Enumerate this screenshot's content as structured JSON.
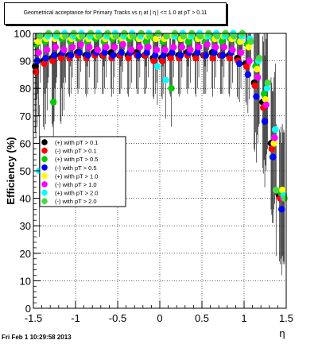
{
  "chart_data": {
    "type": "scatter",
    "title": "Geometrical acceptance for Primary Tracks vs   η at |  η | <= 1.0 at pT > 0.11",
    "xlabel": "η",
    "ylabel": "Efficiency (%)",
    "xlim": [
      -1.5,
      1.5
    ],
    "ylim": [
      0,
      100
    ],
    "xticks": [
      "-1.5",
      "-1",
      "-0.5",
      "0",
      "0.5",
      "1",
      "1.5"
    ],
    "yticks": [
      "0",
      "10",
      "20",
      "30",
      "40",
      "50",
      "60",
      "70",
      "80",
      "90",
      "100"
    ],
    "grid": true,
    "legend_position": "left-middle",
    "series": [
      {
        "name": "(+) with pT > 0.1",
        "color": "#000000",
        "x": [
          -1.45,
          -1.35,
          -1.25,
          -1.15,
          -1.05,
          -0.95,
          -0.85,
          -0.75,
          -0.65,
          -0.55,
          -0.45,
          -0.35,
          -0.25,
          -0.15,
          -0.05,
          0.05,
          0.15,
          0.25,
          0.35,
          0.45,
          0.55,
          0.65,
          0.75,
          0.85,
          0.95,
          1.05,
          1.15,
          1.25,
          1.35,
          1.45
        ],
        "y": [
          88,
          90,
          91,
          92,
          92,
          93,
          92,
          93,
          92,
          93,
          92,
          92,
          93,
          92,
          91,
          91,
          92,
          92,
          93,
          92,
          92,
          93,
          92,
          92,
          91,
          89,
          82,
          75,
          60,
          41
        ]
      },
      {
        "name": "(-) with pT > 0.1",
        "color": "#ff0000",
        "x": [
          -1.45,
          -1.35,
          -1.25,
          -1.15,
          -1.05,
          -0.95,
          -0.85,
          -0.75,
          -0.65,
          -0.55,
          -0.45,
          -0.35,
          -0.25,
          -0.15,
          -0.05,
          0.05,
          0.15,
          0.25,
          0.35,
          0.45,
          0.55,
          0.65,
          0.75,
          0.85,
          0.95,
          1.05,
          1.15,
          1.25,
          1.35,
          1.45
        ],
        "y": [
          86,
          89,
          90,
          91,
          91,
          92,
          91,
          92,
          92,
          91,
          92,
          91,
          92,
          92,
          90,
          90,
          91,
          91,
          92,
          91,
          92,
          91,
          92,
          91,
          90,
          88,
          81,
          73,
          58,
          40
        ]
      },
      {
        "name": "(+) with pT > 0.5",
        "color": "#00cc00",
        "x": [
          -1.45,
          -1.35,
          -1.25,
          -1.15,
          -1.05,
          -0.95,
          -0.85,
          -0.75,
          -0.65,
          -0.55,
          -0.45,
          -0.35,
          -0.25,
          -0.15,
          -0.05,
          0.05,
          0.15,
          0.25,
          0.35,
          0.45,
          0.55,
          0.65,
          0.75,
          0.85,
          0.95,
          1.05,
          1.15,
          1.25,
          1.35,
          1.45
        ],
        "y": [
          96,
          97,
          75,
          98,
          97,
          98,
          97,
          98,
          97,
          98,
          97,
          98,
          98,
          97,
          98,
          97,
          80,
          98,
          97,
          98,
          97,
          98,
          97,
          98,
          97,
          96,
          88,
          78,
          55,
          42
        ]
      },
      {
        "name": "(-) with pT > 0.5",
        "color": "#0000ff",
        "x": [
          -1.45,
          -1.35,
          -1.25,
          -1.15,
          -1.05,
          -0.95,
          -0.85,
          -0.75,
          -0.65,
          -0.55,
          -0.45,
          -0.35,
          -0.25,
          -0.15,
          -0.05,
          0.05,
          0.15,
          0.25,
          0.35,
          0.45,
          0.55,
          0.65,
          0.75,
          0.85,
          0.95,
          1.05,
          1.15,
          1.25,
          1.35,
          1.45
        ],
        "y": [
          90,
          91,
          92,
          93,
          92,
          93,
          92,
          93,
          93,
          92,
          93,
          93,
          92,
          93,
          92,
          92,
          93,
          92,
          93,
          93,
          92,
          93,
          92,
          93,
          89,
          85,
          77,
          68,
          55,
          36
        ]
      },
      {
        "name": "(+) with pT > 1.0",
        "color": "#ffff00",
        "x": [
          -1.45,
          -1.35,
          -1.25,
          -1.15,
          -1.05,
          -0.95,
          -0.85,
          -0.75,
          -0.65,
          -0.55,
          -0.45,
          -0.35,
          -0.25,
          -0.15,
          -0.05,
          0.05,
          0.15,
          0.25,
          0.35,
          0.45,
          0.55,
          0.65,
          0.75,
          0.85,
          0.95,
          1.05,
          1.15,
          1.25,
          1.35,
          1.45
        ],
        "y": [
          97,
          98,
          98,
          99,
          98,
          99,
          98,
          99,
          98,
          99,
          98,
          99,
          98,
          99,
          98,
          98,
          99,
          98,
          99,
          98,
          99,
          98,
          99,
          98,
          97,
          95,
          87,
          76,
          60,
          43
        ]
      },
      {
        "name": "(-) with pT > 1.0",
        "color": "#ff00ff",
        "x": [
          -1.45,
          -1.35,
          -1.25,
          -1.15,
          -1.05,
          -0.95,
          -0.85,
          -0.75,
          -0.65,
          -0.55,
          -0.45,
          -0.35,
          -0.25,
          -0.15,
          -0.05,
          0.05,
          0.15,
          0.25,
          0.35,
          0.45,
          0.55,
          0.65,
          0.75,
          0.85,
          0.95,
          1.05,
          1.15,
          1.25,
          1.35,
          1.45
        ],
        "y": [
          93,
          94,
          95,
          94,
          95,
          96,
          95,
          94,
          95,
          95,
          96,
          94,
          95,
          95,
          94,
          94,
          95,
          95,
          94,
          95,
          96,
          95,
          95,
          94,
          93,
          90,
          84,
          74,
          62,
          40
        ]
      },
      {
        "name": "(+) with pT > 2.0",
        "color": "#00ffff",
        "x": [
          -1.45,
          -1.35,
          -1.25,
          -1.15,
          -1.05,
          -0.95,
          -0.85,
          -0.75,
          -0.65,
          -0.55,
          -0.45,
          -0.35,
          -0.25,
          -0.15,
          -0.05,
          0.05,
          0.15,
          0.25,
          0.35,
          0.45,
          0.55,
          0.65,
          0.75,
          0.85,
          0.95,
          1.05,
          1.15,
          1.25,
          1.35,
          1.45
        ],
        "y": [
          50,
          99,
          99,
          100,
          99,
          100,
          99,
          100,
          99,
          100,
          99,
          100,
          99,
          100,
          88,
          83,
          99,
          100,
          99,
          100,
          99,
          100,
          99,
          100,
          99,
          98,
          90,
          80,
          65,
          41
        ]
      },
      {
        "name": "(-) with pT > 2.0",
        "color": "#44dd44",
        "x": [
          -1.45,
          -1.35,
          -1.25,
          -1.15,
          -1.05,
          -0.95,
          -0.85,
          -0.75,
          -0.65,
          -0.55,
          -0.45,
          -0.35,
          -0.25,
          -0.15,
          -0.05,
          0.05,
          0.15,
          0.25,
          0.35,
          0.45,
          0.55,
          0.65,
          0.75,
          0.85,
          0.95,
          1.05,
          1.15,
          1.25,
          1.35,
          1.45
        ],
        "y": [
          99,
          100,
          100,
          99,
          100,
          99,
          100,
          99,
          100,
          99,
          100,
          99,
          100,
          99,
          100,
          99,
          100,
          99,
          100,
          99,
          100,
          99,
          100,
          99,
          100,
          97,
          91,
          82,
          43,
          40
        ]
      }
    ]
  },
  "footer": {
    "timestamp": "Fri Feb  1 10:29:58 2013"
  }
}
